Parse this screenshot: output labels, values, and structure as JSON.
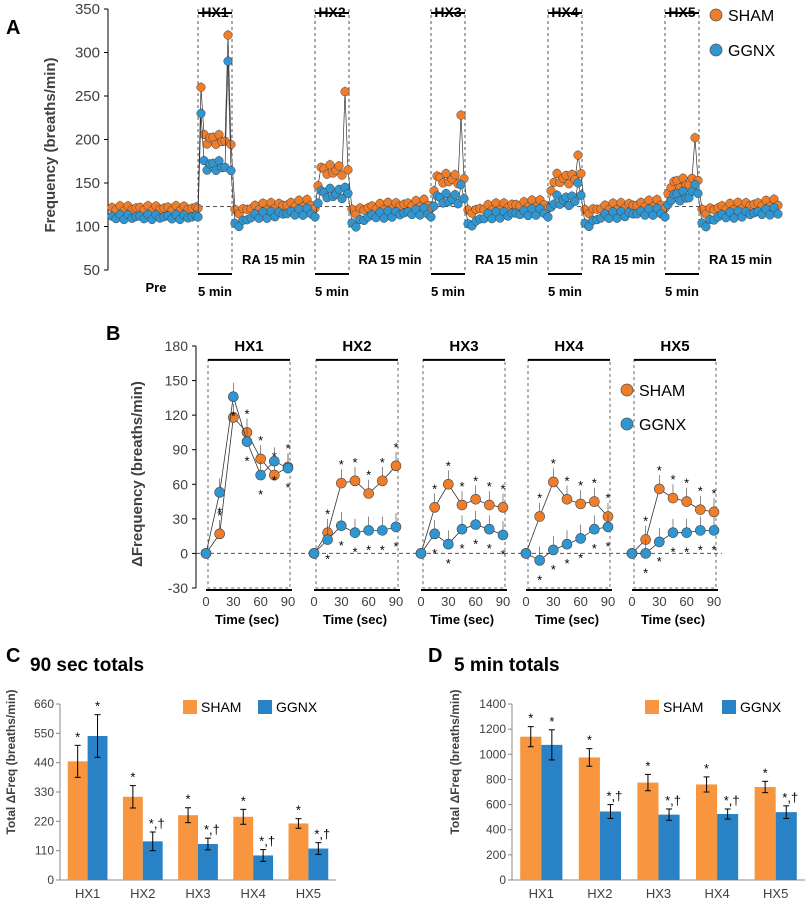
{
  "colors": {
    "sham": "#f07d2a",
    "ggnx": "#2f96d2",
    "sham_bar": "#f7963f",
    "ggnx_bar": "#2a82c6",
    "ink": "#000000"
  },
  "legend": {
    "sham": "SHAM",
    "ggnx": "GGNX"
  },
  "chart_data": [
    {
      "panel": "A",
      "type": "scatter",
      "ylabel": "Frequency (breaths/min)",
      "ylim": [
        50,
        350
      ],
      "yticks": [
        50,
        100,
        150,
        200,
        250,
        300,
        350
      ],
      "baseline": 123,
      "segments": [
        "Pre",
        "HX1",
        "RA 15 min",
        "HX2",
        "RA 15 min",
        "HX3",
        "RA 15 min",
        "HX4",
        "RA 15 min",
        "HX5",
        "RA 15 min"
      ],
      "hx_labels": [
        "HX1",
        "HX2",
        "HX3",
        "HX4",
        "HX5"
      ],
      "hx_duration_label": "5 min",
      "ra_label": "RA 15 min",
      "pre_label": "Pre",
      "series": [
        {
          "name": "SHAM",
          "pre": 121,
          "hx_mean": [
            200,
            165,
            155,
            155,
            150
          ],
          "hx_peak": [
            320,
            255,
            228,
            182,
            202
          ],
          "ra_mean": 120
        },
        {
          "name": "GGNX",
          "pre": 111,
          "hx_mean": [
            170,
            138,
            132,
            130,
            135
          ],
          "hx_peak": [
            290,
            145,
            148,
            150,
            148
          ],
          "ra_mean": 110
        }
      ]
    },
    {
      "panel": "B",
      "type": "line",
      "ylabel": "ΔFrequency (breaths/min)",
      "xlabel": "Time (sec)",
      "ylim": [
        -30,
        180
      ],
      "yticks": [
        -30,
        0,
        30,
        60,
        90,
        120,
        150,
        180
      ],
      "xticks": [
        0,
        30,
        60,
        90
      ],
      "groups": [
        {
          "label": "HX1",
          "x": [
            0,
            15,
            30,
            45,
            60,
            75,
            90
          ],
          "sham": [
            0,
            17,
            118,
            105,
            82,
            68,
            75
          ],
          "ggnx": [
            0,
            53,
            136,
            97,
            68,
            80,
            74
          ]
        },
        {
          "label": "HX2",
          "x": [
            0,
            15,
            30,
            45,
            60,
            75,
            90
          ],
          "sham": [
            0,
            18,
            61,
            63,
            52,
            63,
            76
          ],
          "ggnx": [
            0,
            12,
            24,
            18,
            20,
            20,
            23
          ]
        },
        {
          "label": "HX3",
          "x": [
            0,
            15,
            30,
            45,
            60,
            75,
            90
          ],
          "sham": [
            0,
            40,
            60,
            42,
            47,
            42,
            40
          ],
          "ggnx": [
            0,
            17,
            8,
            21,
            25,
            21,
            16
          ]
        },
        {
          "label": "HX4",
          "x": [
            0,
            15,
            30,
            45,
            60,
            75,
            90
          ],
          "sham": [
            0,
            32,
            62,
            47,
            43,
            45,
            32
          ],
          "ggnx": [
            0,
            -6,
            3,
            8,
            13,
            21,
            23
          ]
        },
        {
          "label": "HX5",
          "x": [
            0,
            15,
            30,
            45,
            60,
            75,
            90
          ],
          "sham": [
            0,
            12,
            56,
            48,
            45,
            38,
            36
          ],
          "ggnx": [
            0,
            0,
            10,
            18,
            18,
            20,
            20
          ]
        }
      ]
    },
    {
      "panel": "C",
      "type": "bar",
      "title": "90 sec totals",
      "ylabel": "Total ΔFreq (breaths/min)",
      "ylim": [
        0,
        660
      ],
      "yticks": [
        0,
        110,
        220,
        330,
        440,
        550,
        660
      ],
      "categories": [
        "HX1",
        "HX2",
        "HX3",
        "HX4",
        "HX5"
      ],
      "series": [
        {
          "name": "SHAM",
          "values": [
            445,
            312,
            243,
            237,
            212
          ],
          "errors": [
            60,
            42,
            28,
            28,
            18
          ],
          "marks": [
            "*",
            "*",
            "*",
            "*",
            "*"
          ]
        },
        {
          "name": "GGNX",
          "values": [
            540,
            145,
            135,
            92,
            118
          ],
          "errors": [
            80,
            35,
            22,
            22,
            22
          ],
          "marks": [
            "*",
            "*,†",
            "*,†",
            "*,†",
            "*,†"
          ]
        }
      ]
    },
    {
      "panel": "D",
      "type": "bar",
      "title": "5 min totals",
      "ylabel": "Total ΔFreq (breaths/min)",
      "ylim": [
        0,
        1400
      ],
      "yticks": [
        0,
        200,
        400,
        600,
        800,
        1000,
        1200,
        1400
      ],
      "categories": [
        "HX1",
        "HX2",
        "HX3",
        "HX4",
        "HX5"
      ],
      "series": [
        {
          "name": "SHAM",
          "values": [
            1140,
            975,
            775,
            760,
            740
          ],
          "errors": [
            80,
            70,
            65,
            60,
            45
          ],
          "marks": [
            "*",
            "*",
            "*",
            "*",
            "*"
          ]
        },
        {
          "name": "GGNX",
          "values": [
            1075,
            545,
            520,
            525,
            540
          ],
          "errors": [
            120,
            55,
            45,
            40,
            50
          ],
          "marks": [
            "*",
            "*,†",
            "*,†",
            "*,†",
            "*,†"
          ]
        }
      ]
    }
  ]
}
